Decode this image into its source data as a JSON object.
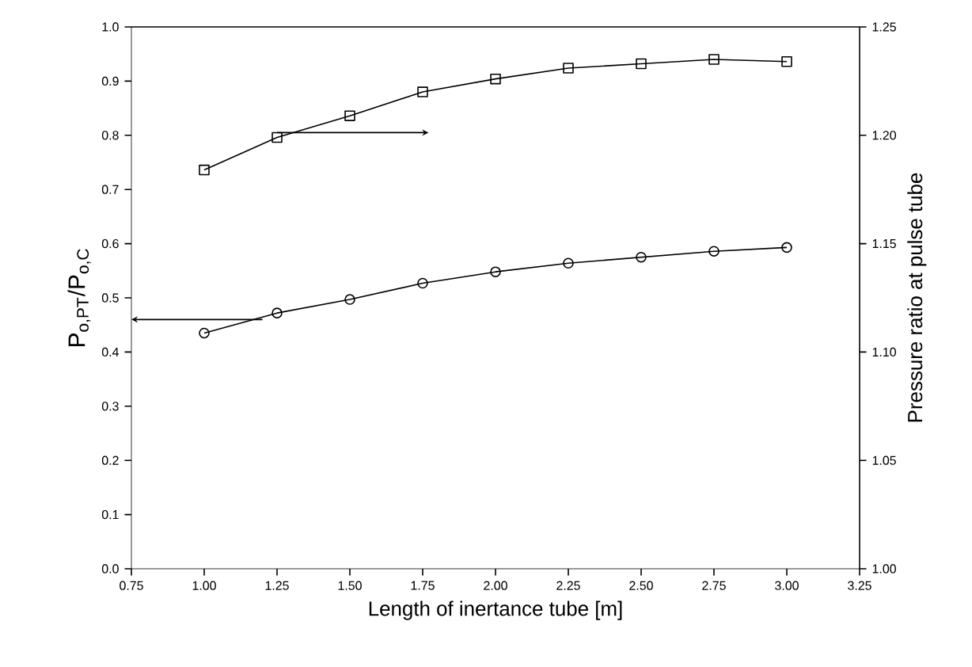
{
  "chart_data": {
    "type": "line",
    "xlabel": "Length of inertance tube [m]",
    "ylabel": "P$_{o,PT}$/P$_{o,C}$",
    "y2label": "Pressure ratio at pulse tube",
    "x": [
      1.0,
      1.25,
      1.5,
      1.75,
      2.0,
      2.25,
      2.5,
      2.75,
      3.0
    ],
    "series": [
      {
        "color": "#000000",
        "marker": "circle",
        "values": [
          0.435,
          0.472,
          0.497,
          0.527,
          0.548,
          0.564,
          0.575,
          0.586,
          0.593
        ]
      },
      {
        "color": "#000000",
        "marker": "square",
        "axis": "y2",
        "values": [
          1.184,
          1.199,
          1.209,
          1.22,
          1.226,
          1.231,
          1.233,
          1.235,
          1.234
        ]
      }
    ],
    "xlim": [
      0.75,
      3.25
    ],
    "xticks": [
      {
        "value": 0.75,
        "label": "0.75"
      },
      {
        "value": 1.0,
        "label": "1.00"
      },
      {
        "value": 1.25,
        "label": "1.25"
      },
      {
        "value": 1.5,
        "label": "1.50"
      },
      {
        "value": 1.75,
        "label": "1.75"
      },
      {
        "value": 2.0,
        "label": "2.00"
      },
      {
        "value": 2.25,
        "label": "2.25"
      },
      {
        "value": 2.5,
        "label": "2.50"
      },
      {
        "value": 2.75,
        "label": "2.75"
      },
      {
        "value": 3.0,
        "label": "3.00"
      },
      {
        "value": 3.25,
        "label": "3.25"
      }
    ],
    "ylim": [
      0.0,
      1.0
    ],
    "yticks": [
      {
        "value": 0.0,
        "label": "0.0"
      },
      0.1,
      0.2,
      0.3,
      0.4,
      0.5,
      0.6,
      0.7,
      0.8,
      0.9,
      {
        "value": 1.0,
        "label": "1.0"
      }
    ],
    "y2lim": [
      1.0,
      1.25
    ],
    "y2ticks": [
      {
        "value": 1.0,
        "label": "1.00"
      },
      1.05,
      {
        "value": 1.1,
        "label": "1.10"
      },
      1.15,
      {
        "value": 1.2,
        "label": "1.20"
      },
      1.25
    ],
    "grid": false,
    "line_style": "solid"
  }
}
